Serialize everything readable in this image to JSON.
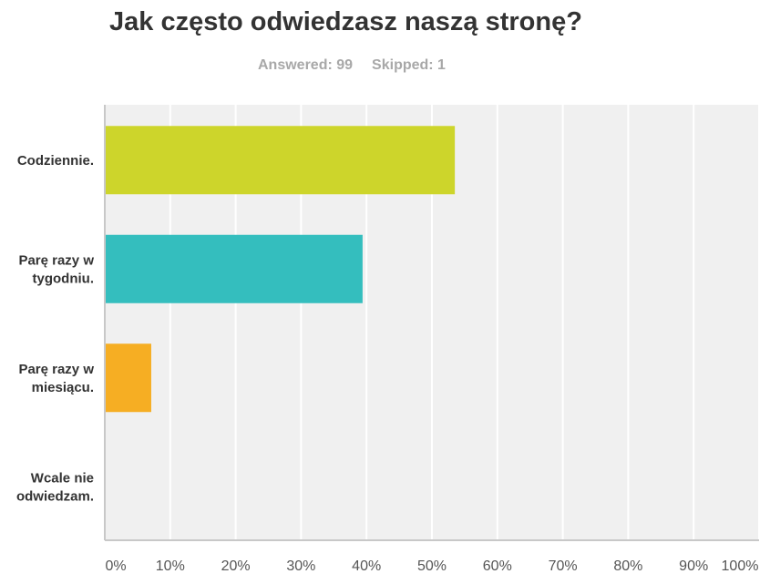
{
  "header": {
    "title": "Jak często odwiedzasz naszą stronę?",
    "answered": "Answered: 99",
    "skipped": "Skipped: 1"
  },
  "chart_data": {
    "type": "bar",
    "orientation": "horizontal",
    "title": "Jak często odwiedzasz naszą stronę?",
    "xlabel": "",
    "ylabel": "",
    "xlim": [
      0,
      100
    ],
    "unit": "%",
    "grid": true,
    "categories": [
      [
        "Codziennie."
      ],
      [
        "Parę razy w",
        "tygodniu."
      ],
      [
        "Parę razy w",
        "miesiącu."
      ],
      [
        "Wcale nie",
        "odwiedzam."
      ]
    ],
    "values": [
      53.5,
      39.4,
      7.1,
      0
    ],
    "colors": [
      "#cdd52b",
      "#34bebe",
      "#f6ae23",
      "#cccccc"
    ],
    "ticks": [
      "0%",
      "10%",
      "20%",
      "30%",
      "40%",
      "50%",
      "60%",
      "70%",
      "80%",
      "90%",
      "100%"
    ]
  }
}
